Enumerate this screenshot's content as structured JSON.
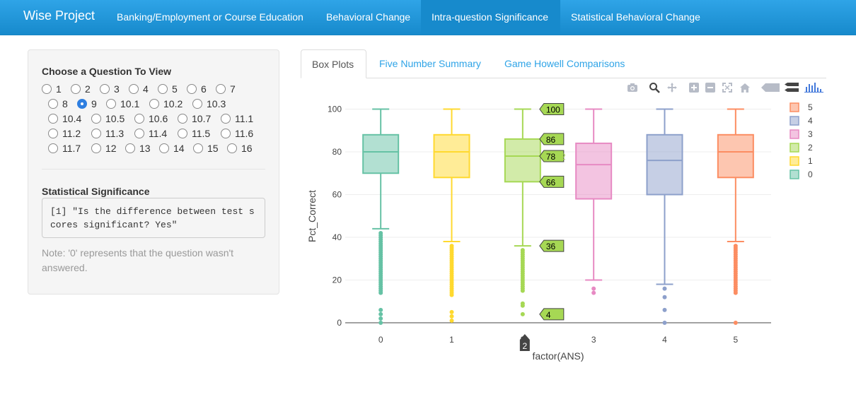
{
  "navbar": {
    "brand": "Wise Project",
    "items": [
      {
        "label": "Banking/Employment or Course Education",
        "active": false
      },
      {
        "label": "Behavioral Change",
        "active": false
      },
      {
        "label": "Intra-question Significance",
        "active": true
      },
      {
        "label": "Statistical Behavioral Change",
        "active": false
      }
    ]
  },
  "sidebar": {
    "question_label": "Choose a Question To View",
    "questions": [
      "1",
      "2",
      "3",
      "4",
      "5",
      "6",
      "7",
      "8",
      "9",
      "10.1",
      "10.2",
      "10.3",
      "10.4",
      "10.5",
      "10.6",
      "10.7",
      "11.1",
      "11.2",
      "11.3",
      "11.4",
      "11.5",
      "11.6",
      "11.7",
      "12",
      "13",
      "14",
      "15",
      "16"
    ],
    "selected": "9",
    "significance_label": "Statistical Significance",
    "significance_output": "[1] \"Is the difference between test s\ncores significant? Yes\"",
    "note": "Note: '0' represents that the question wasn't answered."
  },
  "tabs": [
    "Box Plots",
    "Five Number Summary",
    "Game Howell Comparisons"
  ],
  "active_tab": "Box Plots",
  "modebar": [
    "camera-icon",
    "zoom-icon",
    "pan-icon",
    "zoom-in-icon",
    "zoom-out-icon",
    "autoscale-icon",
    "reset-axes-icon",
    "hover-closest-icon",
    "hover-compare-icon",
    "plotly-logo-icon"
  ],
  "chart_data": {
    "type": "box",
    "xlabel": "factor(ANS)",
    "ylabel": "Pct_Correct",
    "ylim": [
      0,
      100
    ],
    "yticks": [
      0,
      20,
      40,
      60,
      80,
      100
    ],
    "categories": [
      "0",
      "1",
      "2",
      "3",
      "4",
      "5"
    ],
    "colors": {
      "0": "#66c2a5",
      "1": "#ffd92f",
      "2": "#a6d854",
      "3": "#e78ac3",
      "4": "#8da0cb",
      "5": "#fc8d62"
    },
    "boxes": [
      {
        "name": "0",
        "min": 44,
        "q1": 70,
        "median": 80,
        "q3": 88,
        "max": 100,
        "outliers": [
          42,
          41,
          40,
          39,
          38,
          37,
          36,
          35,
          34,
          33,
          32,
          31,
          30,
          29,
          28,
          27,
          26,
          25,
          24,
          23,
          22,
          21,
          20,
          19,
          18,
          17,
          16,
          15,
          14,
          6,
          4,
          2,
          0
        ]
      },
      {
        "name": "1",
        "min": 38,
        "q1": 68,
        "median": 80,
        "q3": 88,
        "max": 100,
        "outliers": [
          36,
          35,
          34,
          33,
          32,
          31,
          30,
          29,
          28,
          27,
          26,
          25,
          24,
          23,
          22,
          21,
          20,
          19,
          18,
          17,
          16,
          15,
          14,
          13,
          5,
          3,
          1
        ]
      },
      {
        "name": "2",
        "min": 36,
        "q1": 66,
        "median": 78,
        "q3": 86,
        "max": 100,
        "outliers": [
          34,
          33,
          32,
          31,
          30,
          29,
          28,
          27,
          26,
          25,
          24,
          23,
          22,
          21,
          20,
          19,
          18,
          17,
          16,
          15,
          9,
          8,
          4
        ]
      },
      {
        "name": "3",
        "min": 20,
        "q1": 58,
        "median": 74,
        "q3": 84,
        "max": 100,
        "outliers": [
          16,
          14
        ]
      },
      {
        "name": "4",
        "min": 18,
        "q1": 60,
        "median": 76,
        "q3": 88,
        "max": 100,
        "outliers": [
          16,
          12,
          6,
          0
        ]
      },
      {
        "name": "5",
        "min": 38,
        "q1": 68,
        "median": 80,
        "q3": 88,
        "max": 100,
        "outliers": [
          36,
          35,
          34,
          33,
          32,
          31,
          30,
          29,
          28,
          27,
          26,
          25,
          24,
          23,
          22,
          21,
          20,
          19,
          18,
          17,
          16,
          15,
          14,
          0
        ]
      }
    ],
    "legend": [
      "5",
      "4",
      "3",
      "2",
      "1",
      "0"
    ],
    "legend_position": "top-right",
    "hover": {
      "category": "2",
      "labels": [
        "100",
        "86",
        "78",
        "66",
        "36",
        "4"
      ],
      "values": [
        100,
        86,
        78,
        66,
        36,
        4
      ],
      "trace_label": "2"
    },
    "grid": true
  }
}
